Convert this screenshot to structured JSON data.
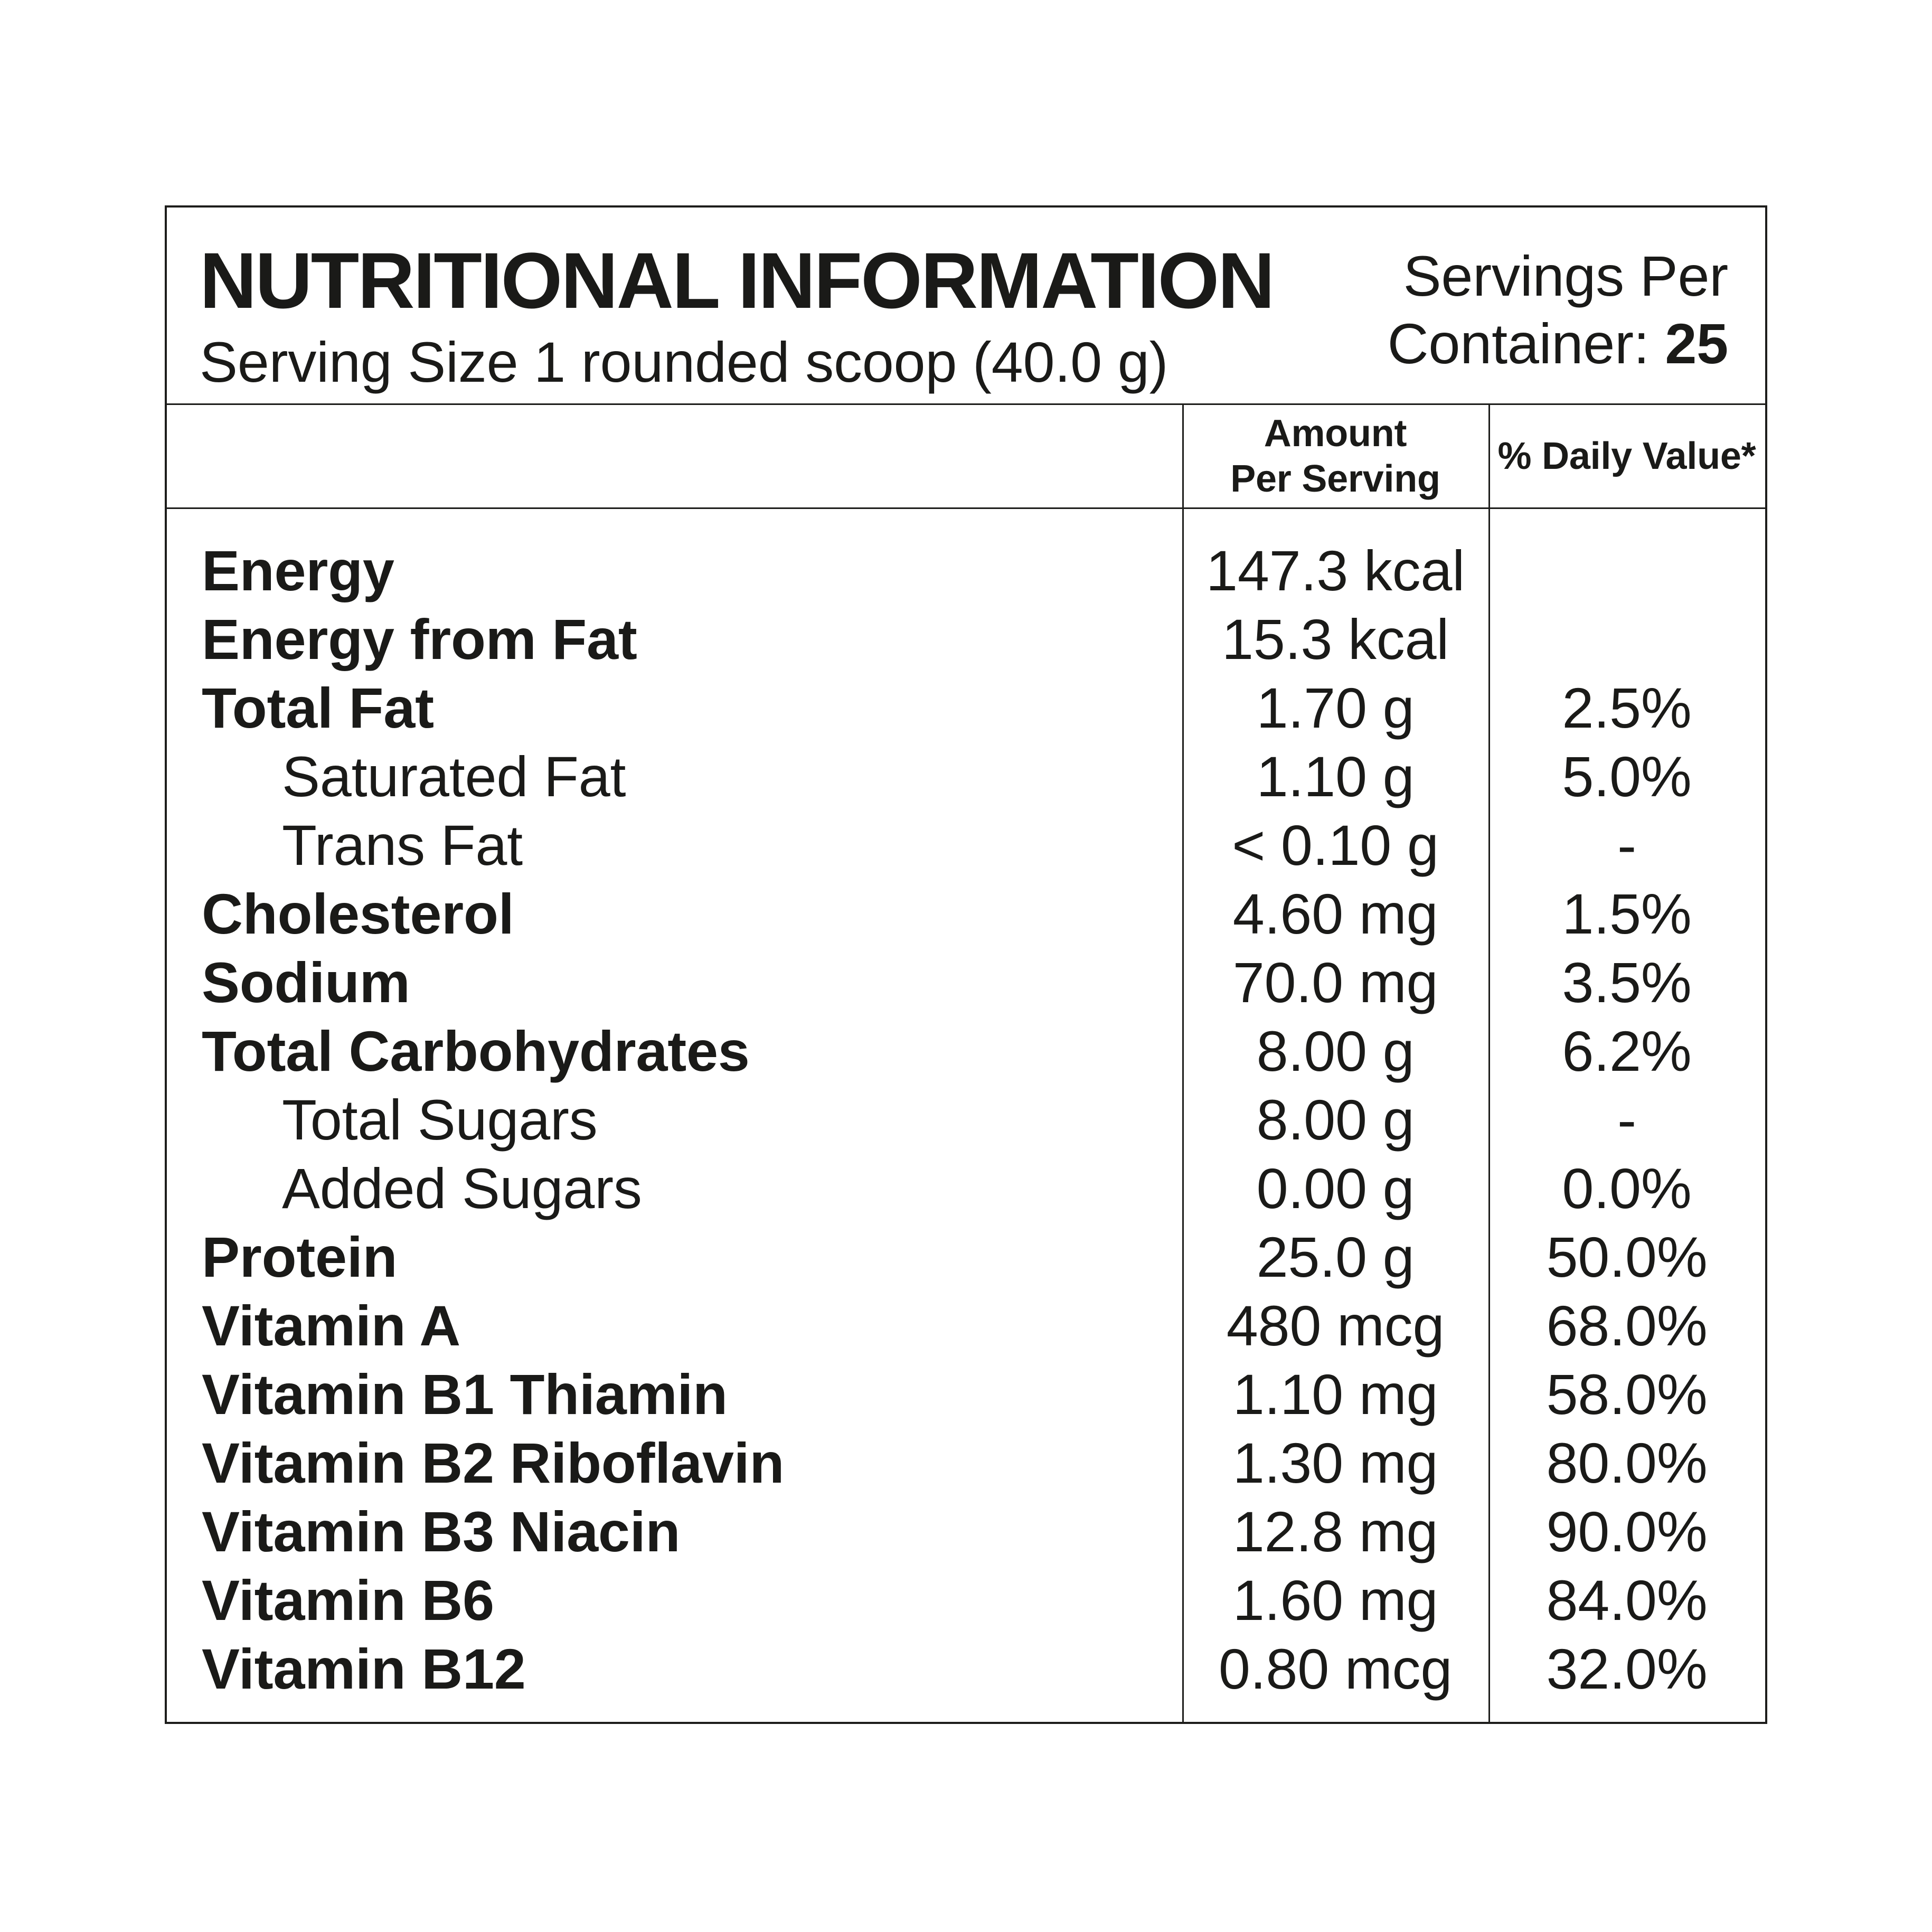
{
  "header": {
    "title": "NUTRITIONAL INFORMATION",
    "serving_size": "Serving Size 1 rounded scoop (40.0 g)",
    "servings_per": {
      "line1": "Servings Per",
      "line2_label": "Container:",
      "value": "25"
    }
  },
  "columns": {
    "amount_line1": "Amount",
    "amount_line2": "Per Serving",
    "daily_value": "% Daily Value*"
  },
  "rows": [
    {
      "label": "Energy",
      "amount": "147.3 kcal",
      "daily_value": "",
      "bold": true,
      "indent": false
    },
    {
      "label": "Energy from Fat",
      "amount": "15.3 kcal",
      "daily_value": "",
      "bold": true,
      "indent": false
    },
    {
      "label": "Total Fat",
      "amount": "1.70 g",
      "daily_value": "2.5%",
      "bold": true,
      "indent": false
    },
    {
      "label": "Saturated Fat",
      "amount": "1.10 g",
      "daily_value": "5.0%",
      "bold": false,
      "indent": true
    },
    {
      "label": "Trans Fat",
      "amount": "< 0.10 g",
      "daily_value": "-",
      "bold": false,
      "indent": true
    },
    {
      "label": "Cholesterol",
      "amount": "4.60 mg",
      "daily_value": "1.5%",
      "bold": true,
      "indent": false
    },
    {
      "label": "Sodium",
      "amount": "70.0 mg",
      "daily_value": "3.5%",
      "bold": true,
      "indent": false
    },
    {
      "label": "Total Carbohydrates",
      "amount": "8.00 g",
      "daily_value": "6.2%",
      "bold": true,
      "indent": false
    },
    {
      "label": "Total Sugars",
      "amount": "8.00 g",
      "daily_value": "-",
      "bold": false,
      "indent": true
    },
    {
      "label": "Added Sugars",
      "amount": "0.00 g",
      "daily_value": "0.0%",
      "bold": false,
      "indent": true
    },
    {
      "label": "Protein",
      "amount": "25.0 g",
      "daily_value": "50.0%",
      "bold": true,
      "indent": false
    },
    {
      "label": "Vitamin A",
      "amount": "480 mcg",
      "daily_value": "68.0%",
      "bold": true,
      "indent": false
    },
    {
      "label": "Vitamin B1 Thiamin",
      "amount": "1.10 mg",
      "daily_value": "58.0%",
      "bold": true,
      "indent": false
    },
    {
      "label": "Vitamin B2 Riboflavin",
      "amount": "1.30 mg",
      "daily_value": "80.0%",
      "bold": true,
      "indent": false
    },
    {
      "label": "Vitamin B3 Niacin",
      "amount": "12.8 mg",
      "daily_value": "90.0%",
      "bold": true,
      "indent": false
    },
    {
      "label": "Vitamin B6",
      "amount": "1.60 mg",
      "daily_value": "84.0%",
      "bold": true,
      "indent": false
    },
    {
      "label": "Vitamin B12",
      "amount": "0.80 mcg",
      "daily_value": "32.0%",
      "bold": true,
      "indent": false
    }
  ],
  "colors": {
    "text": "#1a1a18",
    "line": "#1d1d1b",
    "background": "#ffffff"
  }
}
